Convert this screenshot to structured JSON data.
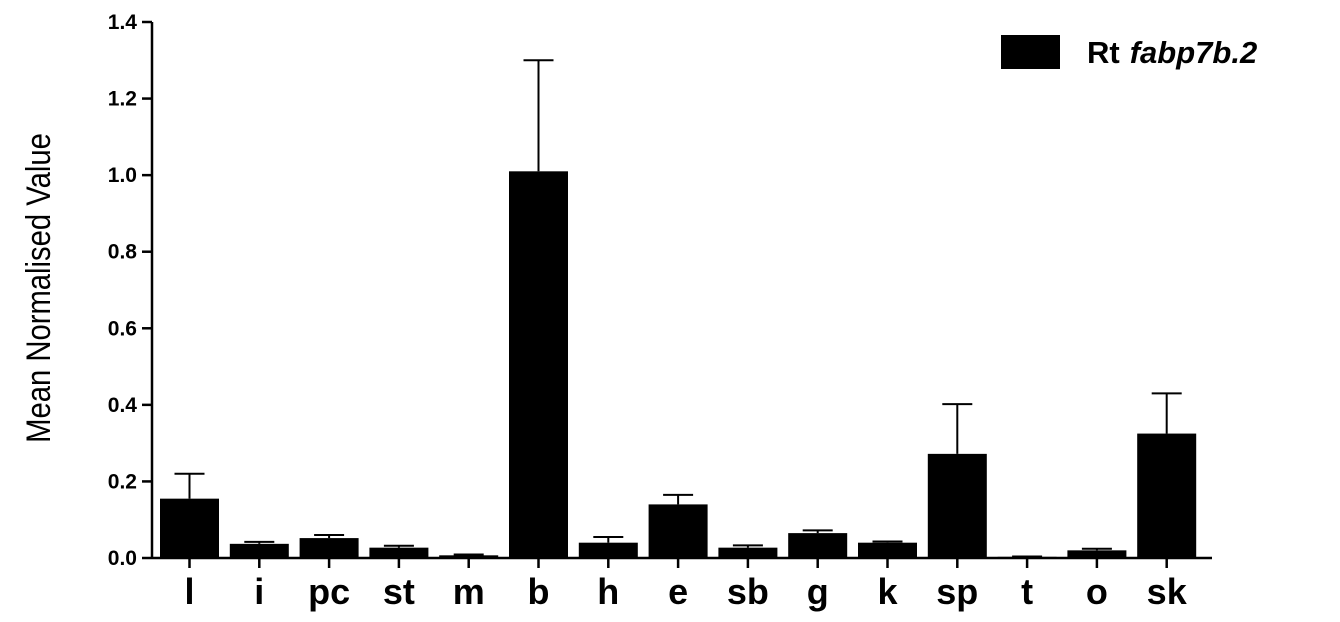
{
  "chart_data": {
    "type": "bar",
    "ylabel": "Mean Normalised Value",
    "xlabel": "",
    "ylim": [
      0,
      1.4
    ],
    "yticks": [
      "0.0",
      "0.2",
      "0.4",
      "0.6",
      "0.8",
      "1.0",
      "1.2",
      "1.4"
    ],
    "categories": [
      "l",
      "i",
      "pc",
      "st",
      "m",
      "b",
      "h",
      "e",
      "sb",
      "g",
      "k",
      "sp",
      "t",
      "o",
      "sk"
    ],
    "series": [
      {
        "name_prefix": "Rt",
        "name_italic": "fabp7b.2",
        "color": "#000000",
        "values": [
          0.155,
          0.037,
          0.052,
          0.027,
          0.007,
          1.01,
          0.04,
          0.14,
          0.027,
          0.065,
          0.04,
          0.272,
          0.003,
          0.02,
          0.325
        ],
        "errors": [
          0.065,
          0.005,
          0.008,
          0.005,
          0.002,
          0.29,
          0.015,
          0.025,
          0.006,
          0.007,
          0.003,
          0.13,
          0.001,
          0.004,
          0.105
        ]
      }
    ],
    "grid": false,
    "legend_position": "top-right"
  }
}
